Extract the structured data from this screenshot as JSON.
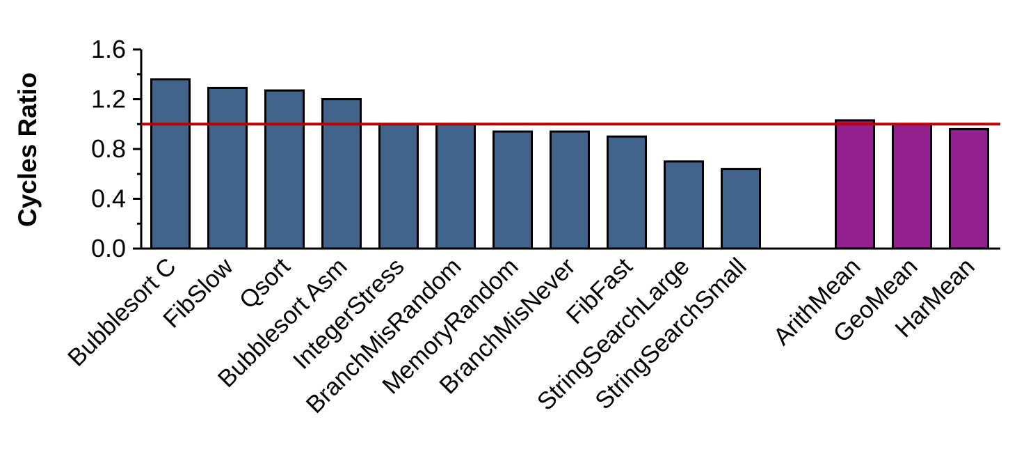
{
  "chart_data": {
    "type": "bar",
    "title": "",
    "xlabel": "",
    "ylabel": "Cycles Ratio",
    "ylim": [
      0,
      1.6
    ],
    "yticks": [
      "0.0",
      "0.4",
      "0.8",
      "1.2",
      "1.6"
    ],
    "categories": [
      "Bubblesort C",
      "FibSlow",
      "Qsort",
      "Bubblesort Asm",
      "IntegerStress",
      "BranchMisRandom",
      "MemoryRandom",
      "BranchMisNever",
      "FibFast",
      "StringSearchLarge",
      "StringSearchSmall",
      "ArithMean",
      "GeoMean",
      "HarMean"
    ],
    "values": [
      1.36,
      1.29,
      1.27,
      1.2,
      1.0,
      1.0,
      0.94,
      0.94,
      0.9,
      0.7,
      0.64,
      1.03,
      1.0,
      0.96
    ],
    "bar_colors": [
      "#41638c",
      "#41638c",
      "#41638c",
      "#41638c",
      "#41638c",
      "#41638c",
      "#41638c",
      "#41638c",
      "#41638c",
      "#41638c",
      "#41638c",
      "#92208f",
      "#92208f",
      "#92208f"
    ],
    "reference_line": {
      "value": 1.0,
      "color": "#c00000"
    },
    "grid": false,
    "legend": "none"
  }
}
